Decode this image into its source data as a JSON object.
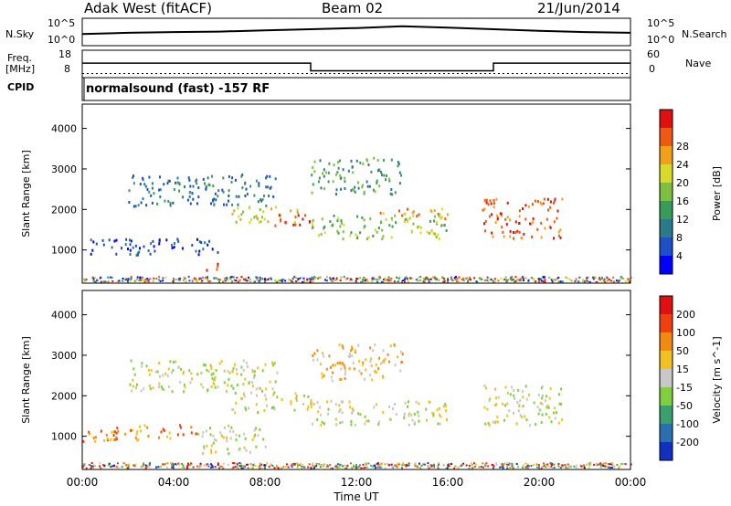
{
  "header": {
    "station": "Adak West (fitACF)",
    "beam": "Beam 02",
    "date": "21/Jun/2014"
  },
  "panels": {
    "noise": {
      "left_label": "N.Sky",
      "right_label": "N.Search",
      "left_ticks": [
        "10^5",
        "10^0"
      ],
      "right_ticks": [
        "10^5",
        "10^0"
      ]
    },
    "freq": {
      "left_label": "Freq.",
      "left_unit": "[MHz]",
      "right_label": "Nave",
      "left_ticks": [
        "18",
        "8"
      ],
      "right_ticks": [
        "60",
        "0"
      ]
    },
    "cpid": {
      "label": "CPID",
      "program": "normalsound (fast) -157 RF"
    }
  },
  "chart_data": [
    {
      "type": "line",
      "title": "",
      "series": [
        {
          "name": "N.Sky",
          "x": [
            "00:00",
            "02:00",
            "04:00",
            "06:00",
            "08:00",
            "10:00",
            "12:00",
            "14:00",
            "16:00",
            "18:00",
            "20:00",
            "22:00",
            "24:00"
          ],
          "values": [
            100,
            200,
            300,
            400,
            800,
            1500,
            3000,
            8000,
            4000,
            1500,
            600,
            300,
            200
          ]
        }
      ],
      "ylim": [
        "10^0",
        "10^5"
      ],
      "yscale": "log"
    },
    {
      "type": "line",
      "series": [
        {
          "name": "Freq.",
          "x": [
            "00:00",
            "10:00",
            "10:00",
            "18:00",
            "18:00",
            "24:00"
          ],
          "values": [
            13.3,
            13.3,
            10.5,
            10.5,
            13.3,
            13.3
          ]
        },
        {
          "name": "Nave",
          "x": [
            "00:00",
            "24:00"
          ],
          "values": [
            12,
            12
          ]
        }
      ],
      "ylim": [
        8,
        18
      ]
    },
    {
      "type": "heatmap",
      "parameter": "Power",
      "ylabel": "Slant Range [km]",
      "yticks": [
        "1000",
        "2000",
        "3000",
        "4000"
      ],
      "xticks": [
        "00:00",
        "04:00",
        "08:00",
        "12:00",
        "16:00",
        "20:00",
        "00:00"
      ],
      "xlabel": "Time UT",
      "ylim": [
        180,
        4600
      ],
      "colorbar": {
        "label": "Power [dB]",
        "ticks": [
          "4",
          "8",
          "12",
          "16",
          "20",
          "24",
          "28"
        ],
        "colors": [
          "#0000ff",
          "#1e4fc8",
          "#2b7a8c",
          "#3a9a5a",
          "#7fbf3f",
          "#d9d929",
          "#f2a019",
          "#f05a10",
          "#e01010"
        ]
      },
      "echoes": [
        {
          "t": [
            2.0,
            8.5
          ],
          "r": [
            2100,
            2900
          ],
          "level": 2
        },
        {
          "t": [
            6.5,
            9.5
          ],
          "r": [
            1700,
            2100
          ],
          "level": 5
        },
        {
          "t": [
            8.0,
            10.0
          ],
          "r": [
            1600,
            1900
          ],
          "level": 8
        },
        {
          "t": [
            10.0,
            16.0
          ],
          "r": [
            1300,
            1900
          ],
          "level": 4
        },
        {
          "t": [
            13.0,
            16.0
          ],
          "r": [
            1800,
            2100
          ],
          "level": 6
        },
        {
          "t": [
            17.5,
            21.0
          ],
          "r": [
            1300,
            2300
          ],
          "level": 7
        },
        {
          "t": [
            0.0,
            6.0
          ],
          "r": [
            900,
            1300
          ],
          "level": 1
        },
        {
          "t": [
            5.3,
            6.0
          ],
          "r": [
            500,
            700
          ],
          "level": 8
        },
        {
          "t": [
            10.0,
            14.0
          ],
          "r": [
            2400,
            3300
          ],
          "level": 3
        }
      ]
    },
    {
      "type": "heatmap",
      "parameter": "Velocity",
      "ylabel": "Slant Range [km]",
      "yticks": [
        "1000",
        "2000",
        "3000",
        "4000"
      ],
      "xticks": [
        "00:00",
        "04:00",
        "08:00",
        "12:00",
        "16:00",
        "20:00",
        "00:00"
      ],
      "xlabel": "Time UT",
      "ylim": [
        180,
        4600
      ],
      "colorbar": {
        "label": "Velocity [m s^-1]",
        "ticks": [
          "200",
          "100",
          "50",
          "15",
          "-15",
          "-50",
          "-100",
          "-200"
        ],
        "colors": [
          "#1030c0",
          "#2a6fb0",
          "#3aa070",
          "#7fcf3f",
          "#c8c8c8",
          "#f2c020",
          "#f08a10",
          "#f04010",
          "#e01010"
        ]
      },
      "echoes": [
        {
          "t": [
            2.0,
            8.5
          ],
          "r": [
            2100,
            2900
          ],
          "level": 4
        },
        {
          "t": [
            6.5,
            10.0
          ],
          "r": [
            1600,
            2100
          ],
          "level": 4
        },
        {
          "t": [
            10.0,
            16.0
          ],
          "r": [
            1300,
            1900
          ],
          "level": 4
        },
        {
          "t": [
            17.5,
            21.0
          ],
          "r": [
            1300,
            2300
          ],
          "level": 4
        },
        {
          "t": [
            5.0,
            8.0
          ],
          "r": [
            600,
            1300
          ],
          "level": 4
        },
        {
          "t": [
            10.0,
            14.0
          ],
          "r": [
            2400,
            3300
          ],
          "level": 5
        },
        {
          "t": [
            0.0,
            5.0
          ],
          "r": [
            900,
            1300
          ],
          "level": 6
        }
      ]
    }
  ]
}
